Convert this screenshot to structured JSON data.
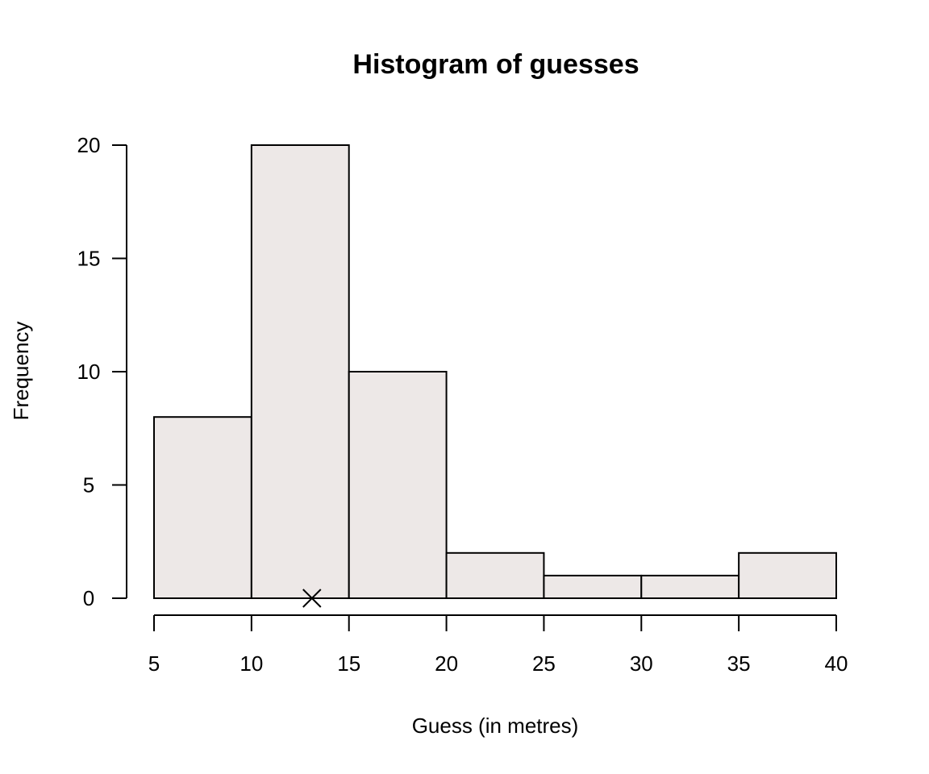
{
  "chart_data": {
    "type": "bar",
    "title": "Histogram of guesses",
    "xlabel": "Guess (in metres)",
    "ylabel": "Frequency",
    "bins": [
      {
        "start": 5,
        "end": 10,
        "count": 8
      },
      {
        "start": 10,
        "end": 15,
        "count": 20
      },
      {
        "start": 15,
        "end": 20,
        "count": 10
      },
      {
        "start": 20,
        "end": 25,
        "count": 2
      },
      {
        "start": 25,
        "end": 30,
        "count": 1
      },
      {
        "start": 30,
        "end": 35,
        "count": 1
      },
      {
        "start": 35,
        "end": 40,
        "count": 2
      }
    ],
    "x_ticks": [
      5,
      10,
      15,
      20,
      25,
      30,
      35,
      40
    ],
    "y_ticks": [
      0,
      5,
      10,
      15,
      20
    ],
    "xlim": [
      5,
      40
    ],
    "ylim": [
      0,
      20
    ],
    "grid": false,
    "bar_fill": "#ede8e7",
    "marker": {
      "shape": "x",
      "x": 13.1,
      "y": 0
    }
  }
}
